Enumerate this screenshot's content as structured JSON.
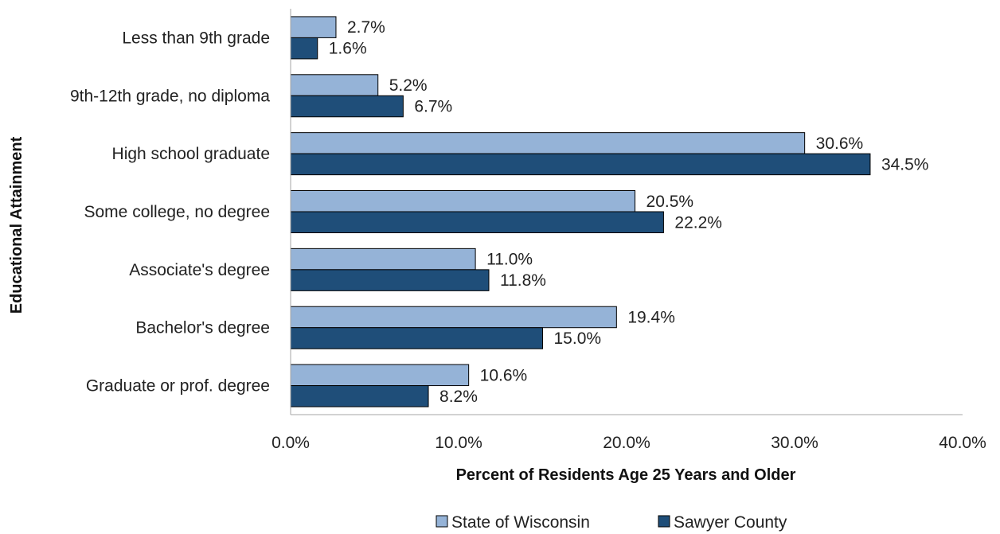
{
  "chart_data": {
    "type": "bar",
    "orientation": "horizontal",
    "title": "",
    "ylabel": "Educational Attainment",
    "xlabel": "Percent of Residents Age 25 Years and Older",
    "categories": [
      "Less than 9th grade",
      "9th-12th grade, no diploma",
      "High school graduate",
      "Some college, no degree",
      "Associate's degree",
      "Bachelor's degree",
      "Graduate or prof. degree"
    ],
    "series": [
      {
        "name": "State of Wisconsin",
        "color": "#95b3d7",
        "values": [
          2.7,
          5.2,
          30.6,
          20.5,
          11.0,
          19.4,
          10.6
        ],
        "labels": [
          "2.7%",
          "5.2%",
          "30.6%",
          "20.5%",
          "11.0%",
          "19.4%",
          "10.6%"
        ]
      },
      {
        "name": "Sawyer County",
        "color": "#1f4e79",
        "values": [
          1.6,
          6.7,
          34.5,
          22.2,
          11.8,
          15.0,
          8.2
        ],
        "labels": [
          "1.6%",
          "6.7%",
          "34.5%",
          "22.2%",
          "11.8%",
          "15.0%",
          "8.2%"
        ]
      }
    ],
    "xlim": [
      0,
      40
    ],
    "ticks": [
      0,
      10,
      20,
      30,
      40
    ],
    "tick_labels": [
      "0.0%",
      "10.0%",
      "20.0%",
      "30.0%",
      "40.0%"
    ],
    "grid": false,
    "legend": "bottom"
  }
}
